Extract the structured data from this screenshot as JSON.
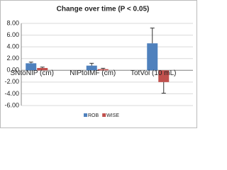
{
  "chart_data": {
    "type": "bar",
    "title": "Change over time (P < 0.05)",
    "categories": [
      "SNtoNIP (cm)",
      "NIPtoIMF (cm)",
      "TotVol (10 mL)"
    ],
    "series": [
      {
        "name": "ROB",
        "color": "#4f81bd",
        "values": [
          1.2,
          0.8,
          4.6
        ],
        "errors": [
          0.2,
          0.4,
          2.6
        ]
      },
      {
        "name": "WISE",
        "color": "#c0504d",
        "values": [
          0.4,
          0.2,
          -2.0
        ],
        "errors": [
          0.15,
          0.15,
          1.9
        ]
      }
    ],
    "ylim": [
      -6,
      8
    ],
    "yticks": [
      {
        "value": -6,
        "label": "-6.00"
      },
      {
        "value": -4,
        "label": "-4.00"
      },
      {
        "value": -2,
        "label": "-2.00"
      },
      {
        "value": 0,
        "label": "0.00"
      },
      {
        "value": 2,
        "label": "2.00"
      },
      {
        "value": 4,
        "label": "4.00"
      },
      {
        "value": 6,
        "label": "6.00"
      },
      {
        "value": 8,
        "label": "8.00"
      }
    ],
    "grid": true,
    "legend": "bottom"
  }
}
